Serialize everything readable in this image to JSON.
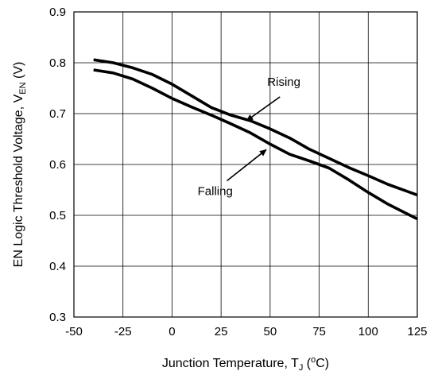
{
  "chart_data": {
    "type": "line",
    "title": "",
    "xlabel": {
      "main": "Junction Temperature, T",
      "sub": "J",
      "open": " (",
      "sup": "o",
      "close": "C)"
    },
    "ylabel": {
      "main": "EN Logic Threshold Voltage, V",
      "sub": "EN",
      "tail": " (V)"
    },
    "xlim": [
      -50,
      125
    ],
    "ylim": [
      0.3,
      0.9
    ],
    "grid": true,
    "legend": "none",
    "x_ticks": [
      "-50",
      "-25",
      "0",
      "25",
      "50",
      "75",
      "100",
      "125"
    ],
    "y_ticks": [
      "0.3",
      "0.4",
      "0.5",
      "0.6",
      "0.7",
      "0.8",
      "0.9"
    ],
    "series": [
      {
        "name": "Rising",
        "points": [
          [
            -40,
            0.806
          ],
          [
            -30,
            0.8
          ],
          [
            -20,
            0.79
          ],
          [
            -10,
            0.777
          ],
          [
            0,
            0.758
          ],
          [
            10,
            0.735
          ],
          [
            20,
            0.712
          ],
          [
            30,
            0.697
          ],
          [
            40,
            0.686
          ],
          [
            50,
            0.67
          ],
          [
            60,
            0.652
          ],
          [
            70,
            0.63
          ],
          [
            80,
            0.612
          ],
          [
            90,
            0.594
          ],
          [
            100,
            0.578
          ],
          [
            110,
            0.561
          ],
          [
            125,
            0.54
          ]
        ]
      },
      {
        "name": "Falling",
        "points": [
          [
            -40,
            0.786
          ],
          [
            -30,
            0.78
          ],
          [
            -20,
            0.768
          ],
          [
            -10,
            0.75
          ],
          [
            0,
            0.73
          ],
          [
            10,
            0.713
          ],
          [
            20,
            0.697
          ],
          [
            30,
            0.68
          ],
          [
            40,
            0.662
          ],
          [
            50,
            0.64
          ],
          [
            60,
            0.62
          ],
          [
            70,
            0.607
          ],
          [
            80,
            0.593
          ],
          [
            90,
            0.57
          ],
          [
            100,
            0.545
          ],
          [
            110,
            0.522
          ],
          [
            125,
            0.493
          ]
        ]
      }
    ],
    "annotations": [
      {
        "text": "Rising",
        "label_at": [
          57,
          0.755
        ],
        "arrow_from": [
          55,
          0.733
        ],
        "arrow_to": [
          38,
          0.686
        ]
      },
      {
        "text": "Falling",
        "label_at": [
          22,
          0.54
        ],
        "arrow_from": [
          28,
          0.568
        ],
        "arrow_to": [
          48,
          0.629
        ]
      }
    ],
    "colors": {
      "line": "#000000",
      "grid": "#000000",
      "background": "#ffffff"
    }
  }
}
